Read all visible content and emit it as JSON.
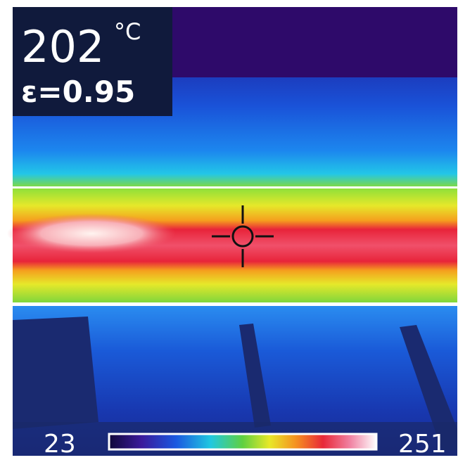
{
  "reading": {
    "temperature": "202",
    "unit": "°C",
    "emissivity": "ε=0.95"
  },
  "scale": {
    "min": "23",
    "max": "251"
  }
}
